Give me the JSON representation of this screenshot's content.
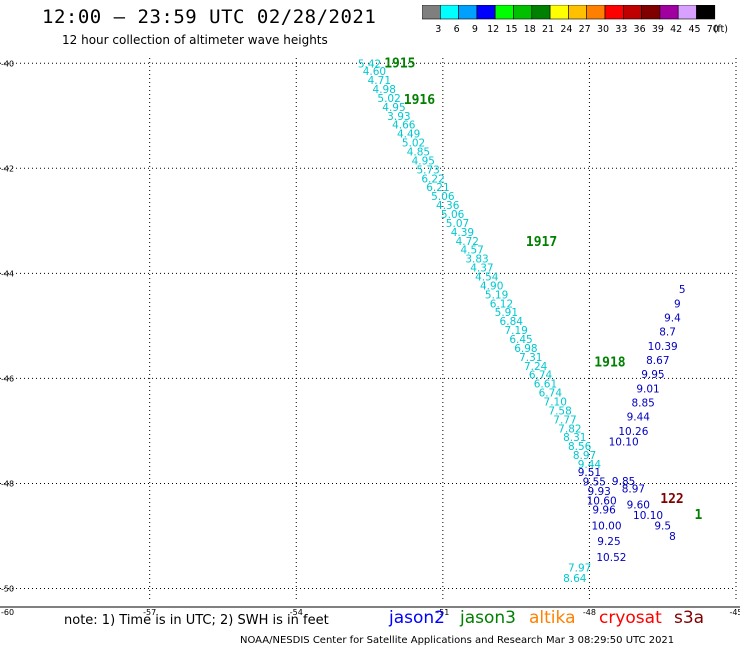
{
  "header": {
    "title": "12:00 – 23:59 UTC 02/28/2021",
    "subtitle": "12 hour collection of altimeter wave heights"
  },
  "colorbar": {
    "labels": [
      "3",
      "6",
      "9",
      "12",
      "15",
      "18",
      "21",
      "24",
      "27",
      "30",
      "33",
      "36",
      "39",
      "42",
      "45",
      "70"
    ],
    "unit": "(ft)",
    "colors": [
      "#7f7f7f",
      "#00ffff",
      "#00a0ff",
      "#0000ff",
      "#00ff00",
      "#00c000",
      "#008000",
      "#ffff00",
      "#ffc000",
      "#ff8000",
      "#ff0000",
      "#c00000",
      "#800000",
      "#a000a0",
      "#d8a0ff",
      "#000000"
    ]
  },
  "footer": {
    "note": "note:  1) Time is in UTC; 2) SWH is in feet",
    "satellites": [
      {
        "name": "jason2",
        "color": "#0000ff"
      },
      {
        "name": "jason3",
        "color": "#008000"
      },
      {
        "name": "altika",
        "color": "#ff8000"
      },
      {
        "name": "cryosat",
        "color": "#ff0000"
      },
      {
        "name": "s3a",
        "color": "#800000"
      }
    ],
    "credit": "NOAA/NESDIS Center for Satellite Applications and Research     Mar  3 08:29:50 UTC 2021"
  },
  "chart_data": {
    "type": "scatter",
    "xlim": [
      -59.9,
      -45
    ],
    "ylim": [
      -50.2,
      -39.9
    ],
    "x_ticks": [
      -57,
      -54,
      -51,
      -48,
      -45
    ],
    "x_tick_labels": [
      "-57",
      "-54",
      "-51",
      "-48",
      "-45"
    ],
    "y_ticks": [
      -40,
      -42,
      -44,
      -46,
      -48,
      -50
    ],
    "y_tick_labels": [
      "-40",
      "-42",
      "-44",
      "-46",
      "-48",
      "-50"
    ],
    "corner_label": "-60",
    "grid": true,
    "series": [
      {
        "color": "#00c8d0",
        "points": [
          [
            -52.5,
            -40.0,
            "5.42"
          ],
          [
            -52.4,
            -40.15,
            "4.60"
          ],
          [
            -52.3,
            -40.32,
            "4.71"
          ],
          [
            -52.2,
            -40.49,
            "4.98"
          ],
          [
            -52.1,
            -40.66,
            "5.02"
          ],
          [
            -52.0,
            -40.83,
            "4.95"
          ],
          [
            -51.9,
            -41.0,
            "3.93"
          ],
          [
            -51.8,
            -41.17,
            "4.66"
          ],
          [
            -51.7,
            -41.34,
            "4.49"
          ],
          [
            -51.6,
            -41.51,
            "5.02"
          ],
          [
            -51.5,
            -41.68,
            "4.85"
          ],
          [
            -51.4,
            -41.85,
            "4.95"
          ],
          [
            -51.3,
            -42.02,
            "5.73"
          ],
          [
            -51.2,
            -42.19,
            "6.22"
          ],
          [
            -51.1,
            -42.36,
            "6.21"
          ],
          [
            -51.0,
            -42.53,
            "5.06"
          ],
          [
            -50.9,
            -42.7,
            "4.36"
          ],
          [
            -50.8,
            -42.87,
            "5.06"
          ],
          [
            -50.7,
            -43.04,
            "5.07"
          ],
          [
            -50.6,
            -43.21,
            "4.39"
          ],
          [
            -50.5,
            -43.38,
            "4.72"
          ],
          [
            -50.4,
            -43.55,
            "4.57"
          ],
          [
            -50.3,
            -43.72,
            "3.83"
          ],
          [
            -50.2,
            -43.89,
            "4.37"
          ],
          [
            -50.1,
            -44.06,
            "4.54"
          ],
          [
            -50.0,
            -44.23,
            "4.90"
          ],
          [
            -49.9,
            -44.4,
            "5.19"
          ],
          [
            -49.8,
            -44.57,
            "6.12"
          ],
          [
            -49.7,
            -44.74,
            "5.91"
          ],
          [
            -49.6,
            -44.91,
            "6.84"
          ],
          [
            -49.5,
            -45.08,
            "7.19"
          ],
          [
            -49.4,
            -45.25,
            "6.45"
          ],
          [
            -49.3,
            -45.42,
            "6.98"
          ],
          [
            -49.2,
            -45.59,
            "7.31"
          ],
          [
            -49.1,
            -45.76,
            "7.24"
          ],
          [
            -49.0,
            -45.93,
            "6.74"
          ],
          [
            -48.9,
            -46.1,
            "6.61"
          ],
          [
            -48.8,
            -46.27,
            "6.74"
          ],
          [
            -48.7,
            -46.44,
            "7.10"
          ],
          [
            -48.6,
            -46.61,
            "7.58"
          ],
          [
            -48.5,
            -46.78,
            "7.77"
          ],
          [
            -48.4,
            -46.95,
            "7.82"
          ],
          [
            -48.3,
            -47.12,
            "8.31"
          ],
          [
            -48.2,
            -47.29,
            "8.56"
          ],
          [
            -48.1,
            -47.46,
            "8.97"
          ],
          [
            -48.0,
            -47.63,
            "9.44"
          ]
        ]
      },
      {
        "color": "#00c8d0",
        "points": [
          [
            -48.2,
            -49.6,
            "7.97"
          ],
          [
            -48.3,
            -49.8,
            "8.64"
          ]
        ]
      },
      {
        "color": "#0000c0",
        "points": [
          [
            -48.0,
            -47.78,
            "9.51"
          ],
          [
            -47.9,
            -47.96,
            "9.55"
          ],
          [
            -47.8,
            -48.14,
            "9.93"
          ],
          [
            -47.75,
            -48.32,
            "10.60"
          ],
          [
            -47.7,
            -48.5,
            "9.96"
          ],
          [
            -47.65,
            -48.8,
            "10.00"
          ],
          [
            -47.6,
            -49.1,
            "9.25"
          ],
          [
            -47.55,
            -49.4,
            "10.52"
          ],
          [
            -47.3,
            -47.95,
            "9.85"
          ],
          [
            -47.1,
            -48.1,
            "8.97"
          ],
          [
            -47.0,
            -48.4,
            "9.60"
          ],
          [
            -46.8,
            -48.6,
            "10.10"
          ],
          [
            -46.5,
            -48.8,
            "9.5"
          ],
          [
            -46.3,
            -49.0,
            "8"
          ],
          [
            -47.3,
            -47.2,
            "10.10"
          ],
          [
            -47.1,
            -47.0,
            "10.26"
          ],
          [
            -47.0,
            -46.73,
            "9.44"
          ],
          [
            -46.9,
            -46.46,
            "8.85"
          ],
          [
            -46.8,
            -46.19,
            "9.01"
          ],
          [
            -46.7,
            -45.92,
            "9.95"
          ],
          [
            -46.6,
            -45.65,
            "8.67"
          ],
          [
            -46.5,
            -45.38,
            "10.39"
          ],
          [
            -46.4,
            -45.11,
            "8.7"
          ],
          [
            -46.3,
            -44.84,
            "9.4"
          ],
          [
            -46.2,
            -44.57,
            "9"
          ],
          [
            -46.1,
            -44.3,
            "5"
          ]
        ]
      }
    ],
    "annotations": [
      {
        "text": "1915",
        "x": -52.2,
        "y": -40.0,
        "color": "#008000"
      },
      {
        "text": "1916",
        "x": -51.8,
        "y": -40.7,
        "color": "#008000"
      },
      {
        "text": "1917",
        "x": -49.3,
        "y": -43.4,
        "color": "#008000"
      },
      {
        "text": "1918",
        "x": -47.9,
        "y": -45.7,
        "color": "#008000"
      },
      {
        "text": "122",
        "x": -46.55,
        "y": -48.3,
        "color": "#800000"
      },
      {
        "text": "1",
        "x": -45.85,
        "y": -48.6,
        "color": "#008000"
      }
    ]
  }
}
